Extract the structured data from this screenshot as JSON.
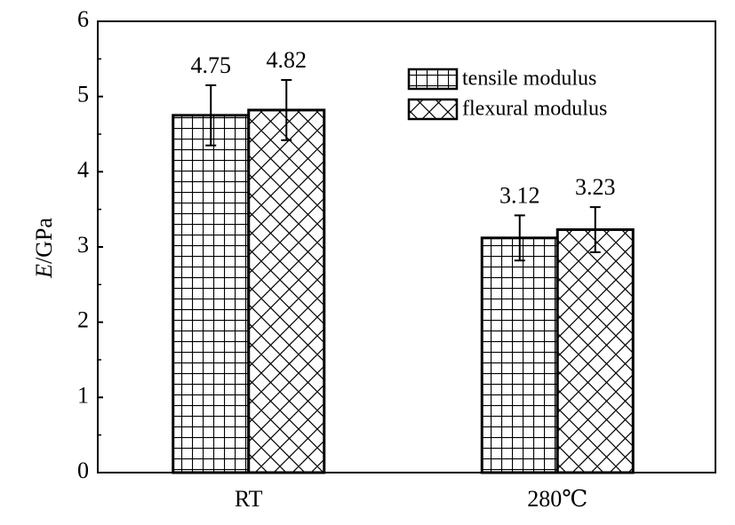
{
  "chart_data": {
    "type": "bar",
    "categories": [
      "RT",
      "280℃"
    ],
    "series": [
      {
        "name": "tensile modulus",
        "values": [
          4.75,
          3.12
        ],
        "errors": [
          0.4,
          0.3
        ],
        "labels": [
          "4.75",
          "3.12"
        ],
        "pattern": "grid"
      },
      {
        "name": "flexural modulus",
        "values": [
          4.82,
          3.23
        ],
        "errors": [
          0.4,
          0.3
        ],
        "labels": [
          "4.82",
          "3.23"
        ],
        "pattern": "crosshatch"
      }
    ],
    "xlabel": "",
    "ylabel": {
      "italic": "E",
      "rest": "/GPa"
    },
    "ylim": [
      0,
      6
    ],
    "yticks": [
      "0",
      "1",
      "2",
      "3",
      "4",
      "5",
      "6"
    ],
    "grid": false,
    "legend_position": "top-right",
    "colors": {
      "bar_fill": "#ffffff",
      "stroke": "#000000"
    }
  }
}
